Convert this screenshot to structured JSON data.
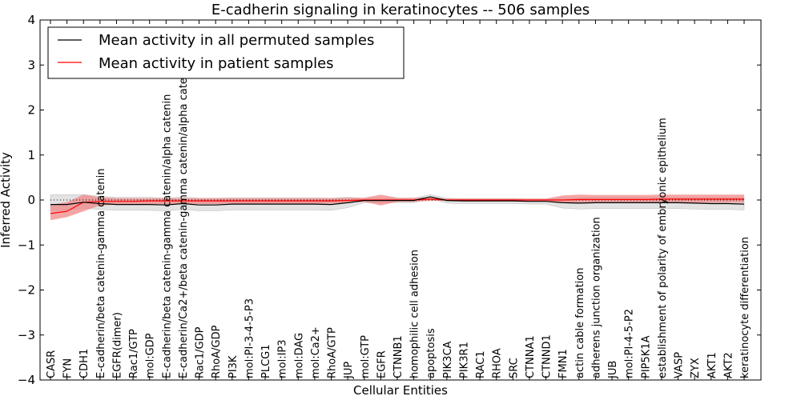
{
  "chart_data": {
    "type": "line",
    "title": "E-cadherin signaling in keratinocytes -- 506 samples",
    "xlabel": "Cellular Entities",
    "ylabel": "Inferred Activity",
    "ylim": [
      -4,
      4
    ],
    "yticks": [
      -4,
      -3,
      -2,
      -1,
      0,
      1,
      2,
      3,
      4
    ],
    "ytick_labels": [
      "−4",
      "−3",
      "−2",
      "−1",
      "0",
      "1",
      "2",
      "3",
      "4"
    ],
    "legend_position": "top-left",
    "categories": [
      "CASR",
      "FYN",
      "CDH1",
      "E-cadherin/beta catenin-gamma catenin",
      "EGFR(dimer)",
      "Rac1/GTP",
      "mol:GDP",
      "E-cadherin/beta catenin-gamma catenin/alpha catenin",
      "E-cadherin/Ca2+/beta catenin-gamma catenin/alpha catenin",
      "Rac1/GDP",
      "RhoA/GDP",
      "PI3K",
      "mol:PI-3-4-5-P3",
      "PLCG1",
      "mol:IP3",
      "mol:DAG",
      "mol:Ca2+",
      "RhoA/GTP",
      "JUP",
      "mol:GTP",
      "EGFR",
      "CTNNB1",
      "homophilic cell adhesion",
      "apoptosis",
      "PIK3CA",
      "PIK3R1",
      "RAC1",
      "RHOA",
      "SRC",
      "CTNNA1",
      "CTNND1",
      "FMN1",
      "actin cable formation",
      "adherens junction organization",
      "JUB",
      "mol:PI-4-5-P2",
      "PIP5K1A",
      "establishment of polarity of embryonic epithelium",
      "VASP",
      "ZYX",
      "AKT1",
      "AKT2",
      "keratinocyte differentiation"
    ],
    "series": [
      {
        "name": "Mean activity in all permuted samples",
        "color": "#000000",
        "values": [
          -0.1,
          -0.1,
          -0.05,
          -0.08,
          -0.1,
          -0.1,
          -0.1,
          -0.11,
          -0.08,
          -0.11,
          -0.11,
          -0.09,
          -0.09,
          -0.09,
          -0.09,
          -0.09,
          -0.09,
          -0.1,
          -0.06,
          -0.01,
          -0.01,
          -0.01,
          -0.01,
          0.07,
          -0.01,
          -0.02,
          -0.02,
          -0.02,
          -0.02,
          -0.03,
          -0.03,
          -0.06,
          -0.07,
          -0.06,
          -0.06,
          -0.06,
          -0.06,
          -0.06,
          -0.06,
          -0.07,
          -0.08,
          -0.08,
          -0.09
        ],
        "band_low": [
          -0.23,
          -0.23,
          -0.18,
          -0.21,
          -0.23,
          -0.23,
          -0.23,
          -0.24,
          -0.21,
          -0.24,
          -0.24,
          -0.22,
          -0.22,
          -0.22,
          -0.22,
          -0.22,
          -0.22,
          -0.23,
          -0.17,
          -0.06,
          -0.06,
          -0.06,
          -0.06,
          0.03,
          -0.07,
          -0.08,
          -0.08,
          -0.08,
          -0.08,
          -0.09,
          -0.09,
          -0.18,
          -0.2,
          -0.19,
          -0.19,
          -0.19,
          -0.19,
          -0.19,
          -0.19,
          -0.2,
          -0.21,
          -0.21,
          -0.22
        ],
        "band_high": [
          0.12,
          0.12,
          0.12,
          0.08,
          0.06,
          0.06,
          0.06,
          0.04,
          0.07,
          0.04,
          0.04,
          0.05,
          0.05,
          0.05,
          0.05,
          0.05,
          0.05,
          0.04,
          0.06,
          0.04,
          0.04,
          0.04,
          0.04,
          0.12,
          0.04,
          0.03,
          0.03,
          0.03,
          0.03,
          0.02,
          0.02,
          0.04,
          0.05,
          0.06,
          0.06,
          0.06,
          0.06,
          0.06,
          0.06,
          0.06,
          0.06,
          0.06,
          0.06
        ]
      },
      {
        "name": "Mean activity in patient samples",
        "color": "#ff0000",
        "values": [
          -0.3,
          -0.25,
          -0.05,
          -0.03,
          -0.03,
          -0.03,
          -0.02,
          -0.02,
          -0.02,
          -0.02,
          -0.02,
          -0.02,
          -0.02,
          -0.02,
          -0.02,
          -0.02,
          -0.02,
          -0.02,
          -0.01,
          0.0,
          0.0,
          0.0,
          0.0,
          0.02,
          0.0,
          0.0,
          0.0,
          0.0,
          0.0,
          0.0,
          0.0,
          0.0,
          0.01,
          0.01,
          0.01,
          0.01,
          0.01,
          0.02,
          0.02,
          0.02,
          0.02,
          0.02,
          0.02
        ],
        "band_low": [
          -0.45,
          -0.38,
          -0.25,
          -0.12,
          -0.1,
          -0.1,
          -0.09,
          -0.09,
          -0.09,
          -0.09,
          -0.09,
          -0.08,
          -0.08,
          -0.08,
          -0.08,
          -0.08,
          -0.08,
          -0.08,
          -0.06,
          -0.04,
          -0.12,
          -0.04,
          -0.04,
          -0.02,
          -0.02,
          -0.02,
          -0.02,
          -0.02,
          -0.02,
          -0.02,
          -0.02,
          -0.06,
          -0.07,
          -0.06,
          -0.06,
          -0.06,
          -0.06,
          -0.06,
          -0.06,
          -0.06,
          -0.06,
          -0.06,
          -0.06
        ],
        "band_high": [
          -0.1,
          -0.05,
          0.12,
          0.06,
          0.04,
          0.04,
          0.04,
          0.04,
          0.04,
          0.04,
          0.04,
          0.04,
          0.04,
          0.04,
          0.04,
          0.04,
          0.04,
          0.04,
          0.05,
          0.05,
          0.12,
          0.05,
          0.05,
          0.06,
          0.03,
          0.03,
          0.03,
          0.03,
          0.03,
          0.03,
          0.03,
          0.1,
          0.12,
          0.11,
          0.11,
          0.11,
          0.11,
          0.12,
          0.12,
          0.12,
          0.12,
          0.12,
          0.12
        ]
      }
    ],
    "permuted_band_color": "#d9d9d9",
    "patient_band_color": "#f08080",
    "zero_line": "dotted"
  }
}
